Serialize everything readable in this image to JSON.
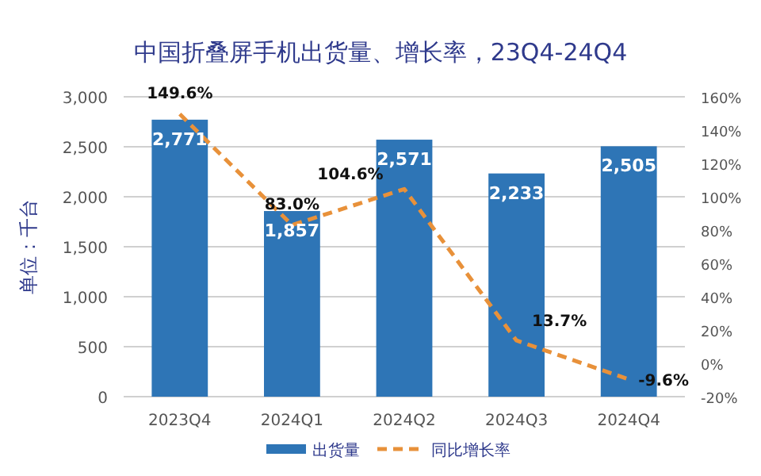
{
  "chart_data": {
    "type": "bar",
    "title": "中国折叠屏手机出货量、增长率，23Q4-24Q4",
    "ylabel": "单位：千台",
    "categories": [
      "2023Q4",
      "2024Q1",
      "2024Q2",
      "2024Q3",
      "2024Q4"
    ],
    "series": [
      {
        "name": "出货量",
        "color": "#2e75b6",
        "values": [
          2771,
          1857,
          2571,
          2233,
          2505
        ],
        "value_labels": [
          "2,771",
          "1,857",
          "2,571",
          "2,233",
          "2,505"
        ]
      },
      {
        "name": "同比增长率",
        "type": "line",
        "axis": "y2",
        "color": "#e8913a",
        "line_style": "dashed",
        "marker": "none",
        "values": [
          149.6,
          83.0,
          104.6,
          13.7,
          -9.6
        ],
        "value_labels": [
          "149.6%",
          "83.0%",
          "104.6%",
          "13.7%",
          "-9.6%"
        ]
      }
    ],
    "ylim": [
      0,
      3000
    ],
    "yticks": [
      0,
      500,
      {
        "value": 1000,
        "label": "1,000"
      },
      {
        "value": 1500,
        "label": "1,500"
      },
      {
        "value": 2000,
        "label": "2,000"
      },
      {
        "value": 2500,
        "label": "2,500"
      },
      {
        "value": 3000,
        "label": "3,000"
      }
    ],
    "y2lim": [
      -20,
      160
    ],
    "y2ticks": [
      {
        "value": -20,
        "label": "-20%"
      },
      {
        "value": 0,
        "label": "0%"
      },
      {
        "value": 20,
        "label": "20%"
      },
      {
        "value": 40,
        "label": "40%"
      },
      {
        "value": 60,
        "label": "60%"
      },
      {
        "value": 80,
        "label": "80%"
      },
      {
        "value": 100,
        "label": "100%"
      },
      {
        "value": 120,
        "label": "120%"
      },
      {
        "value": 140,
        "label": "140%"
      },
      {
        "value": 160,
        "label": "160%"
      }
    ],
    "grid": "y",
    "legend": "bottom"
  }
}
